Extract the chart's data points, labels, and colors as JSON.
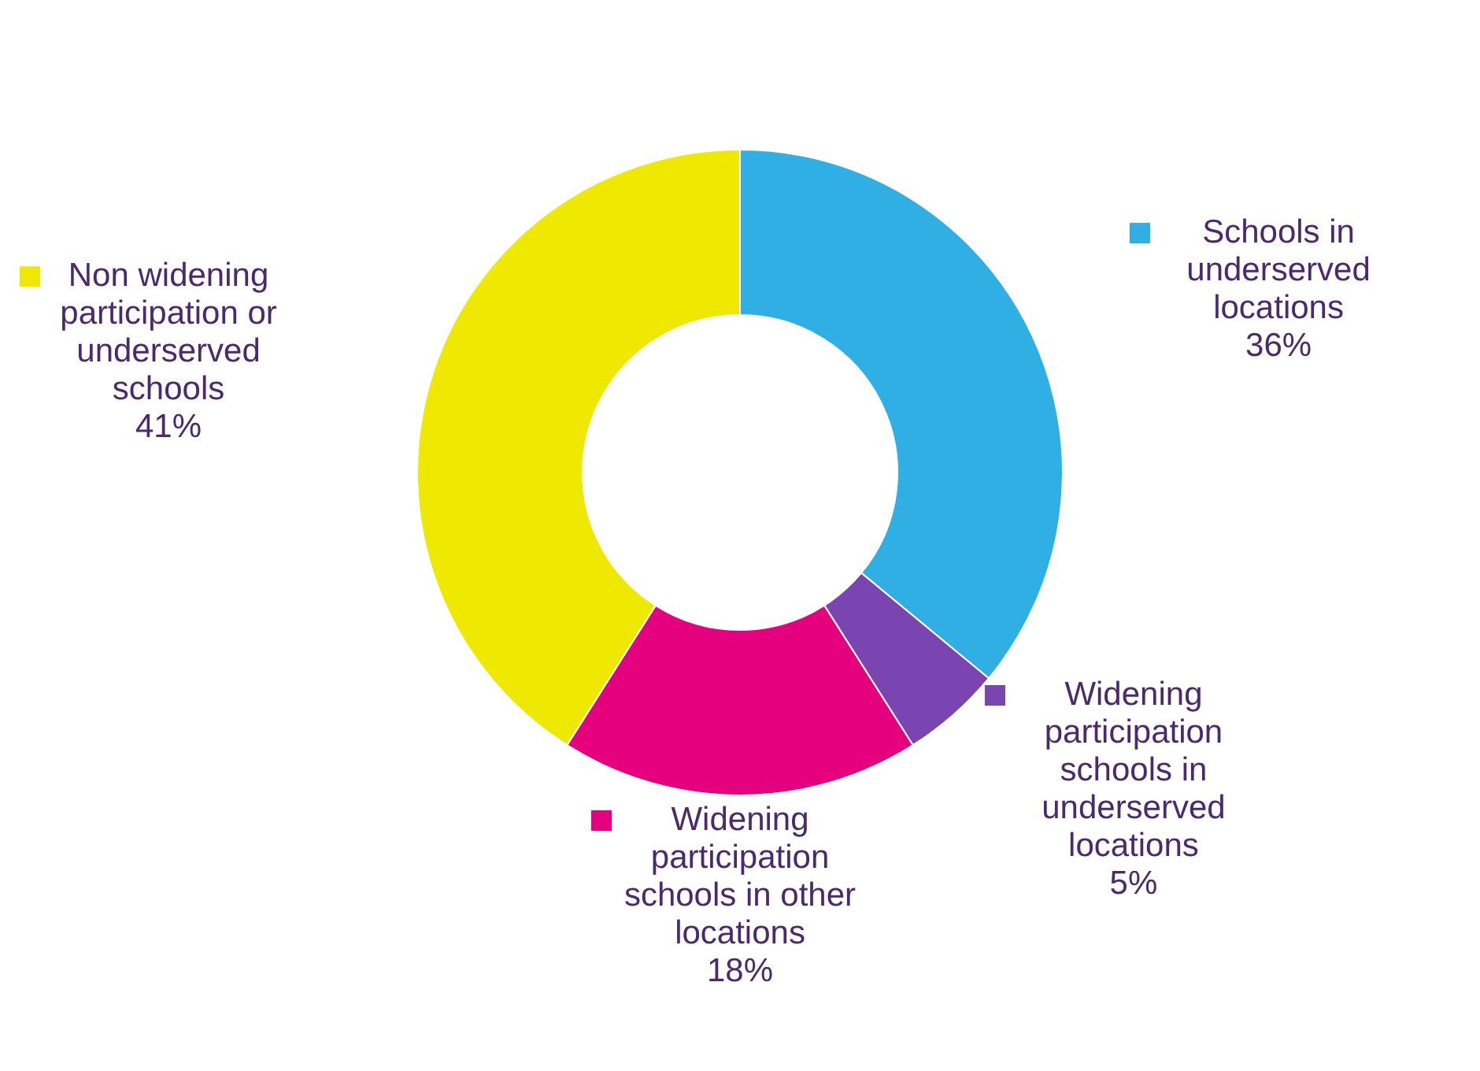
{
  "chart_data": {
    "type": "donut",
    "categories": [
      "Schools in underserved locations",
      "Widening participation schools in underserved locations",
      "Widening participation schools in other locations",
      "Non widening participation or underserved schools"
    ],
    "values": [
      36,
      5,
      18,
      41
    ],
    "colors": [
      "#2fafe4",
      "#7a45b0",
      "#e5007d",
      "#efe800"
    ],
    "value_labels": [
      "36%",
      "5%",
      "18%",
      "41%"
    ],
    "legend": "bottom left"
  }
}
